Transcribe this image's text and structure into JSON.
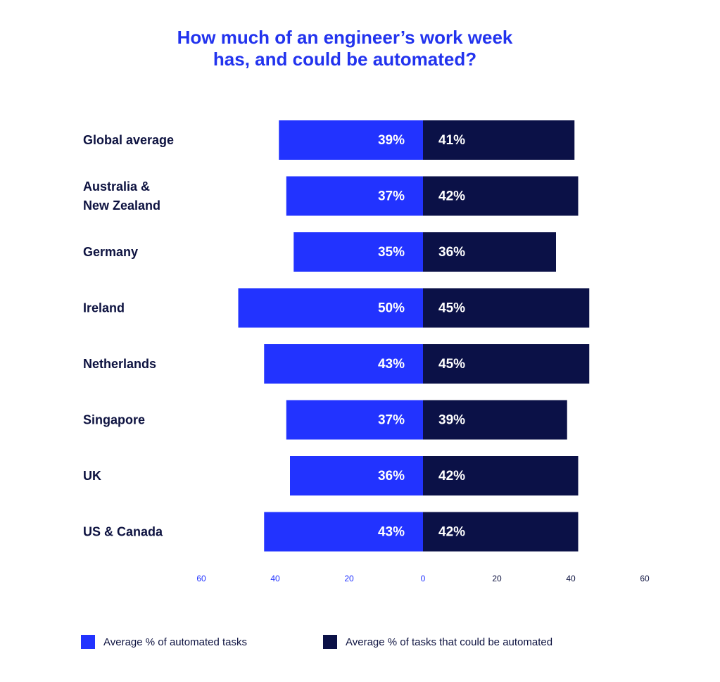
{
  "chart_data": {
    "type": "bar",
    "orientation": "horizontal-diverging",
    "title_lines": [
      "How much of an engineer’s work week",
      "has, and could be automated?"
    ],
    "categories": [
      [
        "Global average"
      ],
      [
        "Australia &",
        "New Zealand"
      ],
      [
        "Germany"
      ],
      [
        "Ireland"
      ],
      [
        "Netherlands"
      ],
      [
        "Singapore"
      ],
      [
        "UK"
      ],
      [
        "US & Canada"
      ]
    ],
    "series": [
      {
        "name": "Average % of automated tasks",
        "color": "#2233ff",
        "direction": "left",
        "values": [
          39,
          37,
          35,
          50,
          43,
          37,
          36,
          43
        ],
        "labels": [
          "39%",
          "37%",
          "35%",
          "50%",
          "43%",
          "37%",
          "36%",
          "43%"
        ]
      },
      {
        "name": "Average % of tasks that could be automated",
        "color": "#0b1147",
        "direction": "right",
        "values": [
          41,
          42,
          36,
          45,
          45,
          39,
          42,
          42
        ],
        "labels": [
          "41%",
          "42%",
          "36%",
          "45%",
          "45%",
          "39%",
          "42%",
          "42%"
        ]
      }
    ],
    "x_ticks_left": [
      "60",
      "40",
      "20"
    ],
    "x_ticks_right": [
      "0",
      "20",
      "40",
      "60"
    ],
    "xlim": [
      -60,
      60
    ],
    "grid": false,
    "legend_position": "bottom"
  }
}
